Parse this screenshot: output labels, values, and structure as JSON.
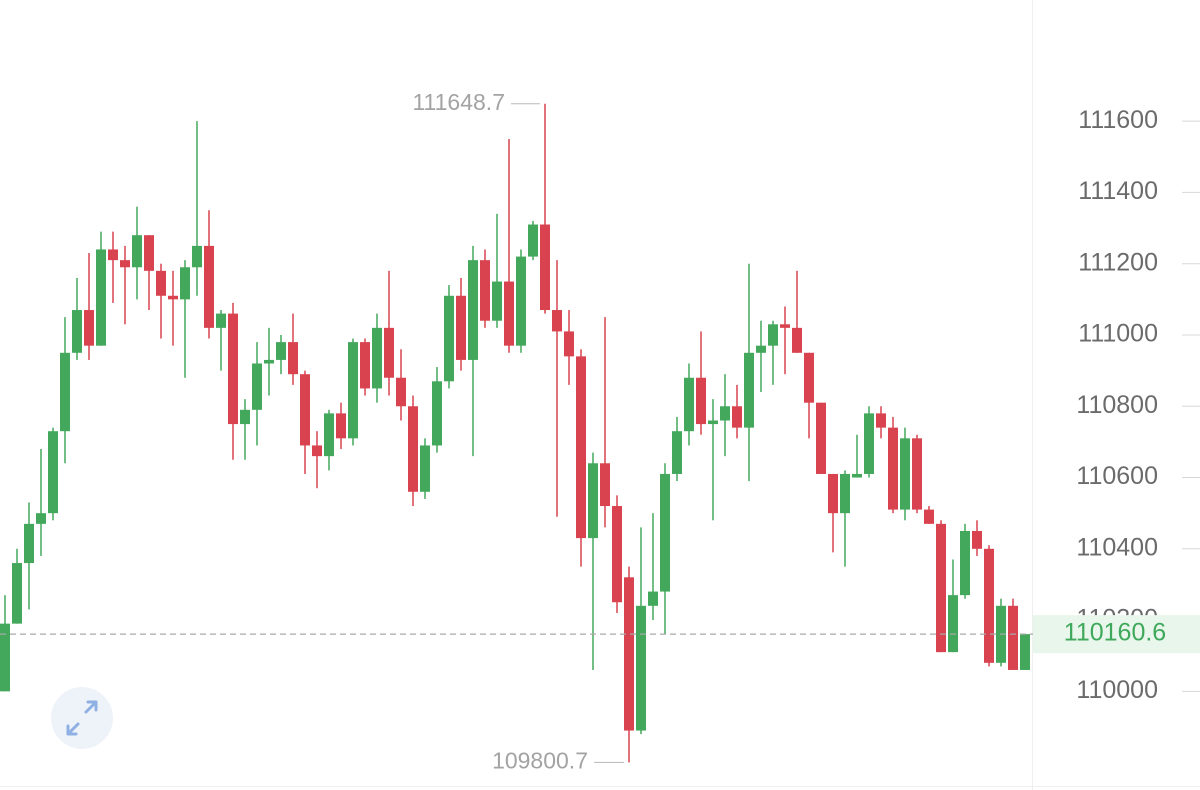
{
  "chart_data": {
    "type": "candlestick",
    "up_color": "#43a85c",
    "down_color": "#d8434f",
    "ylim": [
      109740,
      111940
    ],
    "yticks": [
      110000,
      110200,
      110400,
      110600,
      110800,
      111000,
      111200,
      111400,
      111600
    ],
    "max_marker": 111648.7,
    "min_marker": 109800.7,
    "last_price": 110160.6,
    "open": [
      110000,
      110190,
      110360,
      110470,
      110500,
      110730,
      110950,
      111070,
      110970,
      111240,
      111210,
      111190,
      111280,
      111180,
      111110,
      111100,
      111190,
      111250,
      111020,
      111060,
      110750,
      110790,
      110920,
      110930,
      110980,
      110890,
      110690,
      110660,
      110780,
      110710,
      110980,
      110850,
      111020,
      110880,
      110800,
      110560,
      110690,
      110870,
      111110,
      110930,
      111210,
      111040,
      111150,
      110970,
      111220,
      111310,
      111070,
      111010,
      110940,
      110430,
      110640,
      110520,
      110320,
      109890,
      110240,
      110280,
      110610,
      110730,
      110880,
      110750,
      110760,
      110800,
      110740,
      110950,
      110970,
      111030,
      111020,
      110950,
      110810,
      110610,
      110500,
      110600,
      110610,
      110780,
      110740,
      110510,
      110710,
      110510,
      110470,
      110110,
      110270,
      110450,
      110400,
      110080,
      110240,
      110060
    ],
    "high": [
      110270,
      110400,
      110530,
      110680,
      110740,
      111050,
      111160,
      111230,
      111290,
      111290,
      111250,
      111360,
      111280,
      111200,
      111180,
      111210,
      111600,
      111350,
      111070,
      111090,
      110820,
      110980,
      111020,
      111000,
      111060,
      110900,
      110730,
      110790,
      110810,
      110990,
      110990,
      111060,
      111180,
      110960,
      110830,
      110710,
      110910,
      111140,
      111160,
      111250,
      111240,
      111340,
      111550,
      111240,
      111320,
      111648.7,
      111210,
      111070,
      110960,
      110670,
      111050,
      110550,
      110350,
      110460,
      110500,
      110640,
      110770,
      110920,
      111010,
      110820,
      110890,
      110860,
      111200,
      111040,
      111040,
      111080,
      111180,
      110950,
      110810,
      110610,
      110620,
      110720,
      110800,
      110800,
      110770,
      110740,
      110720,
      110520,
      110480,
      110370,
      110470,
      110480,
      110410,
      110260,
      110260,
      110160.6
    ],
    "low": [
      110000,
      110190,
      110230,
      110380,
      110480,
      110640,
      110930,
      110930,
      110970,
      111090,
      111030,
      111100,
      111070,
      110990,
      110970,
      110880,
      111110,
      110990,
      110900,
      110650,
      110650,
      110690,
      110830,
      110890,
      110860,
      110610,
      110570,
      110620,
      110680,
      110690,
      110830,
      110810,
      110830,
      110760,
      110520,
      110540,
      110670,
      110850,
      110900,
      110660,
      111020,
      111020,
      110950,
      110950,
      111210,
      111060,
      110490,
      110860,
      110350,
      110060,
      110460,
      110220,
      109800.7,
      109880,
      110200,
      110160,
      110590,
      110690,
      110720,
      110480,
      110660,
      110710,
      110590,
      110840,
      110860,
      110890,
      110950,
      110710,
      110610,
      110390,
      110350,
      110600,
      110600,
      110710,
      110500,
      110480,
      110500,
      110470,
      110110,
      110110,
      110260,
      110380,
      110070,
      110070,
      110060,
      110060
    ],
    "close": [
      110190,
      110360,
      110470,
      110500,
      110730,
      110950,
      111070,
      110970,
      111240,
      111210,
      111190,
      111280,
      111180,
      111110,
      111100,
      111190,
      111250,
      111020,
      111060,
      110750,
      110790,
      110920,
      110930,
      110980,
      110890,
      110690,
      110660,
      110780,
      110710,
      110980,
      110850,
      111020,
      110880,
      110800,
      110560,
      110690,
      110870,
      111110,
      110930,
      111210,
      111040,
      111150,
      110970,
      111220,
      111310,
      111070,
      111010,
      110940,
      110430,
      110640,
      110520,
      110250,
      109890,
      110240,
      110280,
      110610,
      110730,
      110880,
      110750,
      110760,
      110800,
      110740,
      110950,
      110970,
      111030,
      111020,
      110950,
      110810,
      110610,
      110500,
      110610,
      110610,
      110780,
      110740,
      110510,
      110710,
      110510,
      110470,
      110110,
      110270,
      110450,
      110400,
      110080,
      110240,
      110060,
      110160.6
    ]
  }
}
